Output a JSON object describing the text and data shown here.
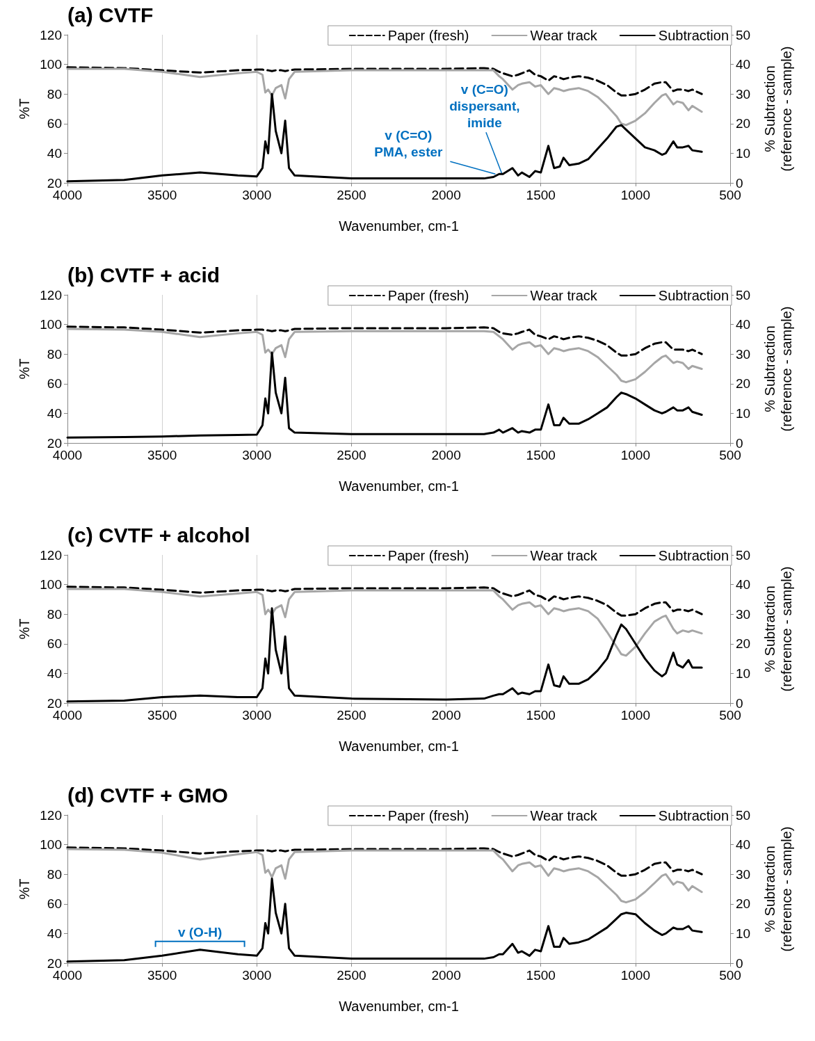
{
  "chart_data": [
    {
      "type": "line",
      "title": "(a) CVTF",
      "xlabel": "Wavenumber, cm-1",
      "ylabel": "%T",
      "y2label": "% Subtraction\n(reference - sample)",
      "xlim": [
        4000,
        500
      ],
      "xticks": [
        4000,
        3500,
        3000,
        2500,
        2000,
        1500,
        1000,
        500
      ],
      "ylim": [
        20,
        120
      ],
      "yticks": [
        20,
        40,
        60,
        80,
        100,
        120
      ],
      "y2lim": [
        0,
        50
      ],
      "y2ticks": [
        0,
        10,
        20,
        30,
        40,
        50
      ],
      "grid": "x",
      "legend": "top right",
      "marker": "none",
      "x": [
        4000,
        3700,
        3500,
        3300,
        3100,
        3000,
        2970,
        2955,
        2940,
        2920,
        2900,
        2870,
        2850,
        2830,
        2800,
        2500,
        2000,
        1800,
        1750,
        1720,
        1700,
        1650,
        1620,
        1600,
        1560,
        1530,
        1500,
        1460,
        1430,
        1400,
        1380,
        1350,
        1300,
        1250,
        1200,
        1150,
        1100,
        1075,
        1050,
        1000,
        950,
        900,
        860,
        840,
        800,
        780,
        750,
        720,
        700,
        650
      ],
      "series": [
        {
          "name": "Paper (fresh)",
          "color": "#000000",
          "line_style": "dashed",
          "values": [
            98,
            97.5,
            96,
            94.5,
            96,
            96.5,
            96.5,
            96,
            96,
            95.5,
            96,
            96,
            95.5,
            96,
            96.5,
            97,
            97,
            97.5,
            97,
            95,
            94,
            92,
            93,
            94,
            96,
            93,
            92,
            89,
            92,
            91,
            90,
            91,
            92,
            91,
            89,
            86,
            81,
            79,
            79,
            80,
            83,
            87,
            88,
            88,
            82,
            83,
            83,
            82,
            83,
            80
          ]
        },
        {
          "name": "Wear track",
          "color": "#a6a6a6",
          "line_style": "solid",
          "values": [
            97,
            97,
            95,
            91.5,
            94,
            95,
            93,
            81,
            83,
            79,
            84,
            86,
            77,
            90,
            95,
            96,
            96,
            96,
            96,
            92,
            90,
            83,
            86,
            87,
            88,
            85,
            86,
            80,
            84,
            83,
            82,
            83,
            84,
            82,
            78,
            72,
            65,
            60,
            59,
            62,
            67,
            74,
            79,
            80,
            73,
            75,
            74,
            69,
            72,
            68
          ]
        },
        {
          "name": "Subtraction",
          "color": "#000000",
          "line_style": "solid",
          "axis": "y2",
          "values": [
            0.5,
            1,
            2.5,
            3.5,
            2.5,
            2.2,
            5,
            14,
            10,
            30,
            17.5,
            10,
            21,
            5,
            2.5,
            1.5,
            1.5,
            1.5,
            2,
            3,
            3,
            5,
            2.5,
            3.5,
            2,
            4,
            3.5,
            12.5,
            5,
            5.5,
            8.5,
            6,
            6.5,
            8,
            11.5,
            15,
            19,
            19.5,
            18,
            15,
            12,
            11,
            9.5,
            10,
            14,
            12,
            12,
            12.5,
            11,
            10.5
          ]
        }
      ],
      "annotations": [
        {
          "text": "v (C=O)\nPMA, ester",
          "x": 1740,
          "y": 26
        },
        {
          "text": "v (C=O)\ndispersant,\nimide",
          "x": 1705,
          "y": 26
        }
      ]
    },
    {
      "type": "line",
      "title": "(b) CVTF + acid",
      "xlabel": "Wavenumber, cm-1",
      "ylabel": "%T",
      "y2label": "% Subtraction\n(reference - sample)",
      "xlim": [
        4000,
        500
      ],
      "xticks": [
        4000,
        3500,
        3000,
        2500,
        2000,
        1500,
        1000,
        500
      ],
      "ylim": [
        20,
        120
      ],
      "yticks": [
        20,
        40,
        60,
        80,
        100,
        120
      ],
      "y2lim": [
        0,
        50
      ],
      "y2ticks": [
        0,
        10,
        20,
        30,
        40,
        50
      ],
      "grid": "x",
      "legend": "top right",
      "marker": "none",
      "x": [
        4000,
        3700,
        3500,
        3300,
        3100,
        3000,
        2970,
        2955,
        2940,
        2920,
        2900,
        2870,
        2850,
        2830,
        2800,
        2500,
        2000,
        1800,
        1750,
        1720,
        1700,
        1650,
        1620,
        1600,
        1560,
        1530,
        1500,
        1460,
        1430,
        1400,
        1380,
        1350,
        1300,
        1250,
        1200,
        1150,
        1100,
        1075,
        1050,
        1000,
        950,
        900,
        860,
        840,
        800,
        780,
        750,
        720,
        700,
        650
      ],
      "series": [
        {
          "name": "Paper (fresh)",
          "color": "#000000",
          "line_style": "dashed",
          "values": [
            98.5,
            98,
            96.5,
            94.5,
            96,
            96.5,
            96.5,
            96,
            96,
            95.5,
            96,
            96,
            95.5,
            96,
            97,
            97.5,
            97.5,
            98,
            97.5,
            95,
            94,
            93,
            94,
            95,
            96.5,
            93,
            92,
            90,
            92,
            91,
            90,
            91,
            92,
            91,
            89,
            86,
            81,
            79,
            79,
            80,
            84,
            87,
            88,
            88,
            83,
            83,
            83,
            82,
            83,
            80
          ]
        },
        {
          "name": "Wear track",
          "color": "#a6a6a6",
          "line_style": "solid",
          "values": [
            97,
            96.5,
            95,
            91.5,
            94,
            95,
            93,
            81,
            83,
            80,
            84,
            86,
            78,
            90,
            95,
            95.5,
            95.5,
            95.5,
            95,
            92,
            90,
            83,
            86,
            87,
            88,
            85,
            86,
            80,
            84,
            83,
            82,
            83,
            84,
            82,
            78,
            72,
            66,
            62,
            61,
            63,
            68,
            74,
            78,
            79,
            74,
            75,
            74,
            70,
            72,
            70
          ]
        },
        {
          "name": "Subtraction",
          "color": "#000000",
          "line_style": "solid",
          "axis": "y2",
          "values": [
            1.8,
            2,
            2.2,
            2.5,
            2.7,
            2.8,
            6,
            15,
            10,
            30.5,
            17,
            10,
            22,
            5,
            3.5,
            3,
            3,
            3,
            3.5,
            4.5,
            3.5,
            5,
            3.5,
            4,
            3.5,
            4.5,
            4.5,
            13,
            6,
            6,
            8.5,
            6.5,
            6.5,
            8,
            10,
            12,
            15.5,
            17,
            16.5,
            15,
            13,
            11,
            10,
            10.5,
            12,
            11,
            11,
            12,
            10.5,
            9.5
          ]
        }
      ]
    },
    {
      "type": "line",
      "title": "(c) CVTF + alcohol",
      "xlabel": "Wavenumber, cm-1",
      "ylabel": "%T",
      "y2label": "% Subtraction\n(reference - sample)",
      "xlim": [
        4000,
        500
      ],
      "xticks": [
        4000,
        3500,
        3000,
        2500,
        2000,
        1500,
        1000,
        500
      ],
      "ylim": [
        20,
        120
      ],
      "yticks": [
        20,
        40,
        60,
        80,
        100,
        120
      ],
      "y2lim": [
        0,
        50
      ],
      "y2ticks": [
        0,
        10,
        20,
        30,
        40,
        50
      ],
      "grid": "x",
      "legend": "top right",
      "marker": "none",
      "x": [
        4000,
        3700,
        3500,
        3300,
        3100,
        3000,
        2970,
        2955,
        2940,
        2920,
        2900,
        2870,
        2850,
        2830,
        2800,
        2500,
        2000,
        1800,
        1750,
        1720,
        1700,
        1650,
        1620,
        1600,
        1560,
        1530,
        1500,
        1460,
        1430,
        1400,
        1380,
        1350,
        1300,
        1250,
        1200,
        1150,
        1100,
        1075,
        1050,
        1000,
        950,
        900,
        860,
        840,
        800,
        780,
        750,
        720,
        700,
        650
      ],
      "series": [
        {
          "name": "Paper (fresh)",
          "color": "#000000",
          "line_style": "dashed",
          "values": [
            98.5,
            98,
            96.5,
            94.5,
            96,
            96.5,
            96.5,
            96,
            96,
            95.5,
            96,
            96,
            95.5,
            96,
            97,
            97.5,
            97.5,
            98,
            97.5,
            95,
            94,
            92,
            93,
            94,
            96,
            93,
            92,
            89,
            92,
            91,
            90,
            91,
            92,
            91,
            89,
            86,
            81,
            79,
            79,
            80,
            84,
            87,
            88,
            88,
            82,
            83,
            83,
            82,
            83,
            80
          ]
        },
        {
          "name": "Wear track",
          "color": "#a6a6a6",
          "line_style": "solid",
          "values": [
            97,
            97,
            95,
            92,
            94,
            95,
            93,
            80,
            83,
            80,
            84,
            86,
            78,
            90,
            95,
            96,
            96,
            96,
            96,
            92,
            90,
            83,
            86,
            87,
            88,
            85,
            86,
            80,
            84,
            83,
            82,
            83,
            84,
            82,
            77,
            68,
            58,
            53,
            52,
            58,
            67,
            75,
            78,
            79,
            70,
            67,
            69,
            68,
            69,
            67
          ]
        },
        {
          "name": "Subtraction",
          "color": "#000000",
          "line_style": "solid",
          "axis": "y2",
          "values": [
            0.5,
            0.8,
            2,
            2.5,
            2,
            2,
            5,
            15,
            10,
            32,
            18,
            10,
            22.5,
            5,
            2.5,
            1.5,
            1.2,
            1.5,
            2.5,
            3,
            3,
            5,
            3,
            3.5,
            3,
            4,
            4,
            13,
            6,
            5.5,
            9,
            6.5,
            6.5,
            8,
            11,
            15,
            23,
            26.5,
            25,
            20,
            15,
            11,
            9,
            10,
            17,
            13,
            12,
            14.5,
            12,
            12
          ]
        }
      ]
    },
    {
      "type": "line",
      "title": "(d) CVTF + GMO",
      "xlabel": "Wavenumber, cm-1",
      "ylabel": "%T",
      "y2label": "% Subtraction\n(reference - sample)",
      "xlim": [
        4000,
        500
      ],
      "xticks": [
        4000,
        3500,
        3000,
        2500,
        2000,
        1500,
        1000,
        500
      ],
      "ylim": [
        20,
        120
      ],
      "yticks": [
        20,
        40,
        60,
        80,
        100,
        120
      ],
      "y2lim": [
        0,
        50
      ],
      "y2ticks": [
        0,
        10,
        20,
        30,
        40,
        50
      ],
      "grid": "x",
      "legend": "top right",
      "marker": "none",
      "x": [
        4000,
        3700,
        3500,
        3300,
        3100,
        3000,
        2970,
        2955,
        2940,
        2920,
        2900,
        2870,
        2850,
        2830,
        2800,
        2500,
        2000,
        1800,
        1750,
        1720,
        1700,
        1650,
        1620,
        1600,
        1560,
        1530,
        1500,
        1460,
        1430,
        1400,
        1380,
        1350,
        1300,
        1250,
        1200,
        1150,
        1100,
        1075,
        1050,
        1000,
        950,
        900,
        860,
        840,
        800,
        780,
        750,
        720,
        700,
        650
      ],
      "series": [
        {
          "name": "Paper (fresh)",
          "color": "#000000",
          "line_style": "dashed",
          "values": [
            98,
            97.5,
            96,
            94,
            95.5,
            96,
            96,
            96,
            96,
            95.5,
            96,
            96,
            95.5,
            96,
            96.5,
            97,
            97,
            97.5,
            97,
            95,
            94,
            92,
            93,
            94,
            96,
            93,
            92,
            89,
            92,
            91,
            90,
            91,
            92,
            91,
            89,
            86,
            81,
            79,
            79,
            80,
            83,
            87,
            88,
            88,
            82,
            83,
            83,
            82,
            83,
            80
          ]
        },
        {
          "name": "Wear track",
          "color": "#a6a6a6",
          "line_style": "solid",
          "values": [
            97,
            96.5,
            94.5,
            90,
            93.5,
            95,
            93,
            81,
            83,
            78,
            84,
            86,
            77,
            90,
            95,
            96,
            96,
            96,
            96,
            92,
            90,
            82,
            86,
            87,
            88,
            85,
            86,
            79,
            84,
            83,
            82,
            83,
            84,
            82,
            78,
            72,
            66,
            62,
            61,
            63,
            68,
            74,
            79,
            80,
            73,
            75,
            74,
            69,
            72,
            68
          ]
        },
        {
          "name": "Subtraction",
          "color": "#000000",
          "line_style": "solid",
          "axis": "y2",
          "values": [
            0.5,
            1,
            2.5,
            4.5,
            3,
            2.5,
            5,
            13.5,
            10,
            28.5,
            17,
            10,
            20,
            5,
            2.5,
            1.5,
            1.5,
            1.5,
            2,
            3,
            3,
            6.5,
            3.5,
            4,
            2.5,
            4.5,
            4,
            12.5,
            5.5,
            5.5,
            8.5,
            6.5,
            7,
            8,
            10,
            12,
            15,
            16.5,
            17,
            16.5,
            13.5,
            11,
            9.5,
            10,
            12,
            11.5,
            11.5,
            12.5,
            11,
            10.5
          ]
        }
      ],
      "annotations": [
        {
          "text": "v (O-H)",
          "x": 3300,
          "y": 29
        }
      ]
    }
  ]
}
